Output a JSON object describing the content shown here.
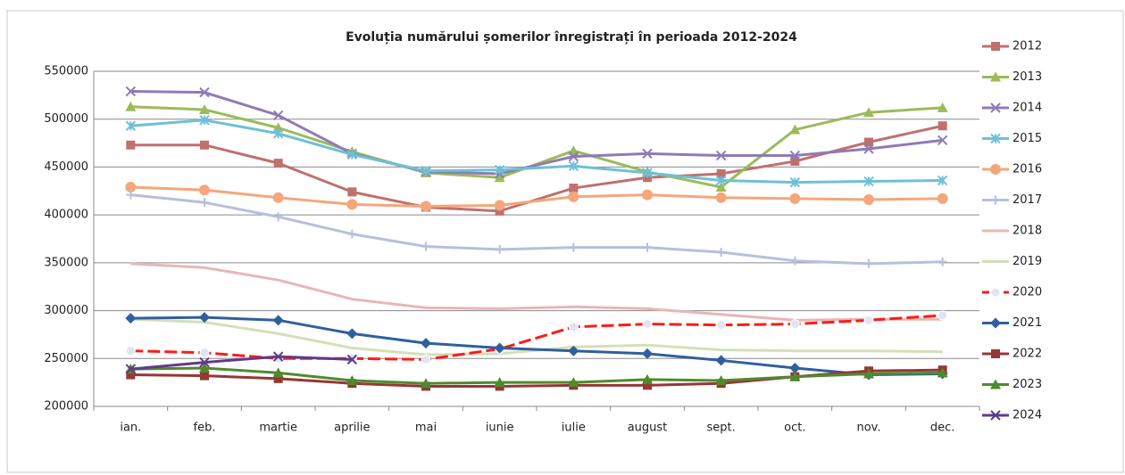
{
  "chart_data": {
    "type": "line",
    "title": "Evoluția numărului  șomerilor înregistrați în perioada 2012-2024",
    "categories": [
      "ian.",
      "feb.",
      "martie",
      "aprilie",
      "mai",
      "iunie",
      "iulie",
      "august",
      "sept.",
      "oct.",
      "nov.",
      "dec."
    ],
    "ylim": [
      200000,
      550000
    ],
    "yticks": [
      200000,
      250000,
      300000,
      350000,
      400000,
      450000,
      500000,
      550000
    ],
    "grid": true,
    "legend": "right",
    "series": [
      {
        "name": "2012",
        "color": "#c0706e",
        "marker": "square",
        "line_style": "solid",
        "values": [
          473000,
          473000,
          454000,
          424000,
          408000,
          404000,
          428000,
          439000,
          443000,
          456000,
          476000,
          493000
        ]
      },
      {
        "name": "2013",
        "color": "#9bbb59",
        "marker": "triangle",
        "line_style": "solid",
        "values": [
          513000,
          510000,
          491000,
          466000,
          444000,
          439000,
          467000,
          445000,
          429000,
          489000,
          507000,
          512000
        ]
      },
      {
        "name": "2014",
        "color": "#8f7bb5",
        "marker": "x",
        "line_style": "solid",
        "values": [
          529000,
          528000,
          504000,
          464000,
          445000,
          443000,
          461000,
          464000,
          462000,
          462000,
          469000,
          478000
        ]
      },
      {
        "name": "2015",
        "color": "#6ec0d6",
        "marker": "star",
        "line_style": "solid",
        "values": [
          493000,
          499000,
          485000,
          463000,
          446000,
          447000,
          451000,
          444000,
          436000,
          434000,
          435000,
          436000
        ]
      },
      {
        "name": "2016",
        "color": "#f5a67a",
        "marker": "circle",
        "line_style": "solid",
        "values": [
          429000,
          426000,
          418000,
          411000,
          409000,
          410000,
          419000,
          421000,
          418000,
          417000,
          416000,
          417000
        ]
      },
      {
        "name": "2017",
        "color": "#b9bedf",
        "marker": "plus",
        "line_style": "solid",
        "values": [
          421000,
          413000,
          398000,
          380000,
          367000,
          364000,
          366000,
          366000,
          361000,
          352000,
          349000,
          351000
        ]
      },
      {
        "name": "2018",
        "color": "#e6b7b6",
        "marker": "none",
        "line_style": "solid",
        "values": [
          349000,
          345000,
          332000,
          312000,
          303000,
          302000,
          304000,
          302000,
          296000,
          290000,
          291000,
          291000
        ]
      },
      {
        "name": "2019",
        "color": "#d3e0b8",
        "marker": "none",
        "line_style": "solid",
        "values": [
          291000,
          288000,
          276000,
          261000,
          254000,
          255000,
          262000,
          264000,
          259000,
          258000,
          258000,
          257000
        ]
      },
      {
        "name": "2020",
        "color": "#ff1a1a",
        "marker": "circle-light",
        "line_style": "dashed",
        "values": [
          258000,
          256000,
          250000,
          250000,
          249000,
          260000,
          283000,
          286000,
          285000,
          286000,
          290000,
          295000
        ]
      },
      {
        "name": "2021",
        "color": "#2f5f9e",
        "marker": "diamond",
        "line_style": "solid",
        "values": [
          292000,
          293000,
          290000,
          276000,
          266000,
          261000,
          258000,
          255000,
          248000,
          240000,
          233000,
          234000
        ]
      },
      {
        "name": "2022",
        "color": "#953735",
        "marker": "square",
        "line_style": "solid",
        "values": [
          233000,
          232000,
          229000,
          224000,
          221000,
          221000,
          222000,
          222000,
          224000,
          231000,
          237000,
          238000
        ]
      },
      {
        "name": "2023",
        "color": "#4f8a2e",
        "marker": "triangle",
        "line_style": "solid",
        "values": [
          239000,
          240000,
          235000,
          227000,
          224000,
          225000,
          225000,
          228000,
          227000,
          231000,
          234000,
          235000
        ]
      },
      {
        "name": "2024",
        "color": "#5f3b8a",
        "marker": "x",
        "line_style": "solid",
        "values": [
          239000,
          246000,
          252000,
          249000,
          null,
          null,
          null,
          null,
          null,
          null,
          null,
          null
        ]
      }
    ]
  }
}
